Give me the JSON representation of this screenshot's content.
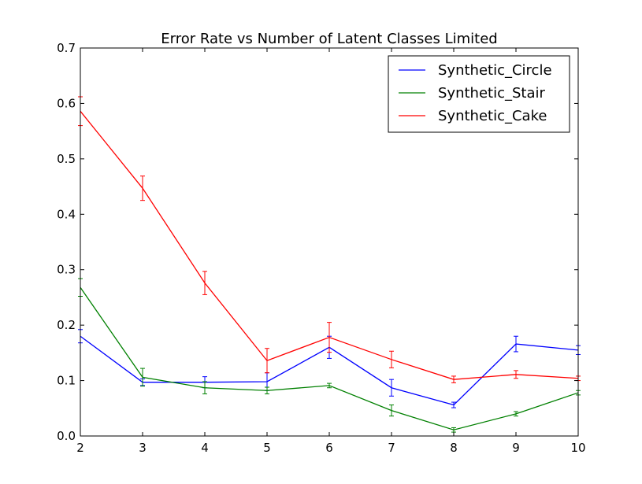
{
  "chart_data": {
    "type": "line",
    "title": "Error Rate vs Number of Latent Classes Limited",
    "xlabel": "",
    "ylabel": "",
    "x": [
      2,
      3,
      4,
      5,
      6,
      7,
      8,
      9,
      10
    ],
    "xlim": [
      2,
      10
    ],
    "ylim": [
      0.0,
      0.7
    ],
    "xticks": [
      "2",
      "3",
      "4",
      "5",
      "6",
      "7",
      "8",
      "9",
      "10"
    ],
    "yticks": [
      "0.0",
      "0.1",
      "0.2",
      "0.3",
      "0.4",
      "0.5",
      "0.6",
      "0.7"
    ],
    "grid": false,
    "legend_position": "top-right",
    "series": [
      {
        "name": "Synthetic_Circle",
        "color": "#0000ff",
        "values": [
          0.18,
          0.097,
          0.097,
          0.098,
          0.16,
          0.087,
          0.056,
          0.166,
          0.155
        ],
        "errors": [
          0.012,
          0.006,
          0.01,
          0.016,
          0.02,
          0.015,
          0.005,
          0.014,
          0.008
        ]
      },
      {
        "name": "Synthetic_Stair",
        "color": "#008000",
        "values": [
          0.268,
          0.106,
          0.087,
          0.082,
          0.091,
          0.046,
          0.011,
          0.04,
          0.078
        ],
        "errors": [
          0.016,
          0.016,
          0.011,
          0.006,
          0.004,
          0.01,
          0.004,
          0.004,
          0.004
        ]
      },
      {
        "name": "Synthetic_Cake",
        "color": "#ff0000",
        "values": [
          0.586,
          0.447,
          0.276,
          0.136,
          0.178,
          0.138,
          0.102,
          0.111,
          0.104
        ],
        "errors": [
          0.026,
          0.022,
          0.021,
          0.022,
          0.027,
          0.015,
          0.006,
          0.007,
          0.004
        ]
      }
    ]
  }
}
